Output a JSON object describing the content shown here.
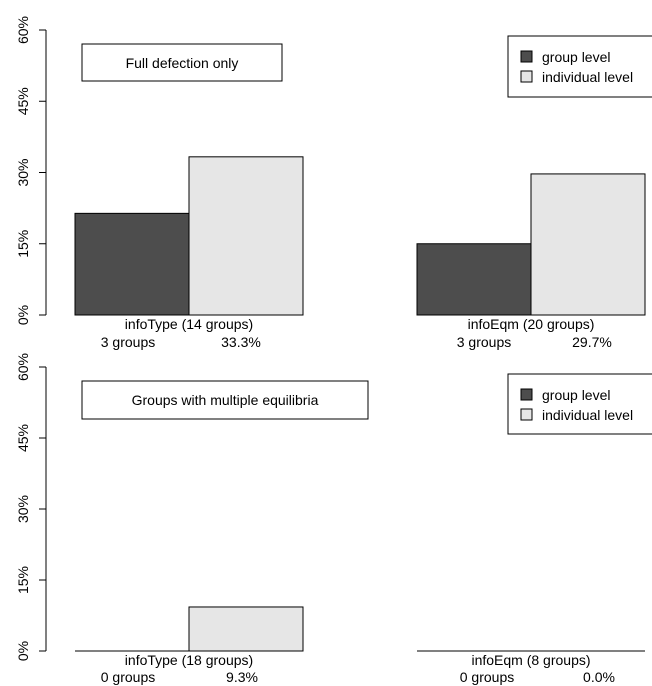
{
  "chart_data": {
    "type": "bar",
    "ylim": [
      0,
      60
    ],
    "y_ticks": [
      "0%",
      "15%",
      "30%",
      "45%",
      "60%"
    ],
    "grid": false,
    "legend_placement": "top-right",
    "colors": {
      "group level": "#4d4d4d",
      "individual level": "#e6e6e6",
      "border": "#000000"
    },
    "series_names": [
      "group level",
      "individual level"
    ],
    "rows": [
      {
        "annotation": "Full defection only",
        "panels": [
          {
            "category": "infoType (14 groups)",
            "group_count": "3 groups",
            "individual_pct": "33.3%",
            "values": [
              21.4,
              33.3
            ]
          },
          {
            "category": "infoEqm (20 groups)",
            "group_count": "3 groups",
            "individual_pct": "29.7%",
            "values": [
              15.0,
              29.7
            ]
          }
        ]
      },
      {
        "annotation": "Groups with multiple equilibria",
        "panels": [
          {
            "category": "infoType (18 groups)",
            "group_count": "0 groups",
            "individual_pct": "9.3%",
            "values": [
              0,
              9.3
            ]
          },
          {
            "category": "infoEqm (8 groups)",
            "group_count": "0 groups",
            "individual_pct": "0.0%",
            "values": [
              0,
              0.0
            ]
          }
        ]
      }
    ]
  }
}
